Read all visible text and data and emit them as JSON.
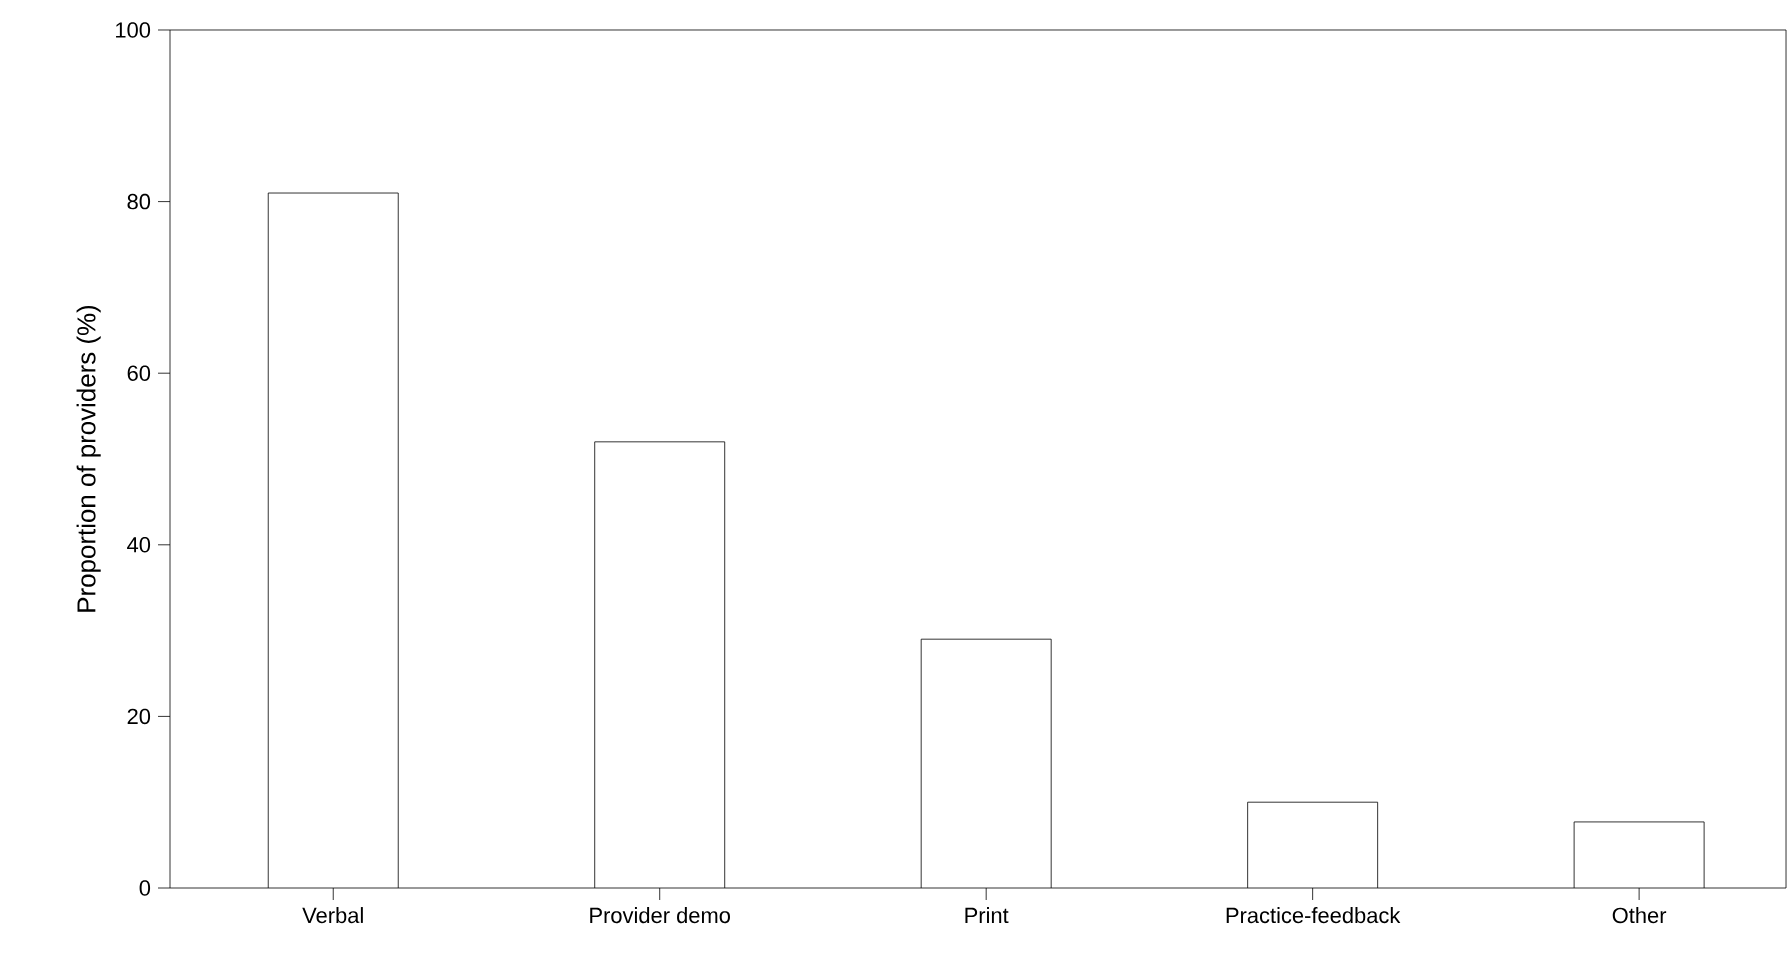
{
  "chart_data": {
    "type": "bar",
    "ylabel": "Proportion of providers (%)",
    "categories": [
      "Verbal",
      "Provider demo",
      "Print",
      "Practice-feedback",
      "Other"
    ],
    "values": [
      81,
      52,
      29,
      10,
      7.7
    ],
    "color": "#ffffff",
    "ylim": [
      0,
      100
    ],
    "yticks": [
      0,
      20,
      40,
      60,
      80,
      100
    ]
  }
}
